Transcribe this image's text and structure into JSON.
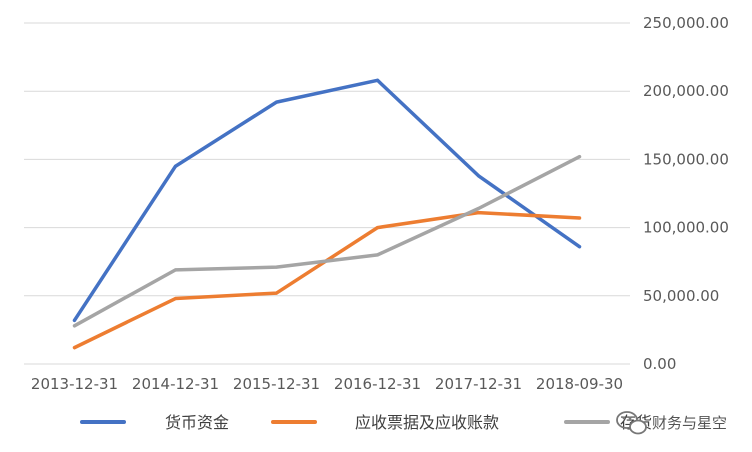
{
  "chart_data": {
    "type": "line",
    "categories": [
      "2013-12-31",
      "2014-12-31",
      "2015-12-31",
      "2016-12-31",
      "2017-12-31",
      "2018-09-30"
    ],
    "y_ticks": [
      "0.00",
      "50,000.00",
      "100,000.00",
      "150,000.00",
      "200,000.00",
      "250,000.00"
    ],
    "ylim": [
      0,
      250000
    ],
    "y_axis_side": "right",
    "grid": true,
    "legend_position": "bottom",
    "series": [
      {
        "name": "货币资金",
        "color": "#4472C4",
        "values": [
          32000,
          145000,
          192000,
          208000,
          138000,
          86000
        ]
      },
      {
        "name": "应收票据及应收账款",
        "color": "#ED7D31",
        "values": [
          12000,
          48000,
          52000,
          100000,
          111000,
          107000
        ]
      },
      {
        "name": "存货",
        "color": "#A5A5A5",
        "values": [
          28000,
          69000,
          71000,
          80000,
          114000,
          152000
        ]
      }
    ]
  },
  "watermark": {
    "text": "财务与星空",
    "icon": "wechat-icon"
  }
}
